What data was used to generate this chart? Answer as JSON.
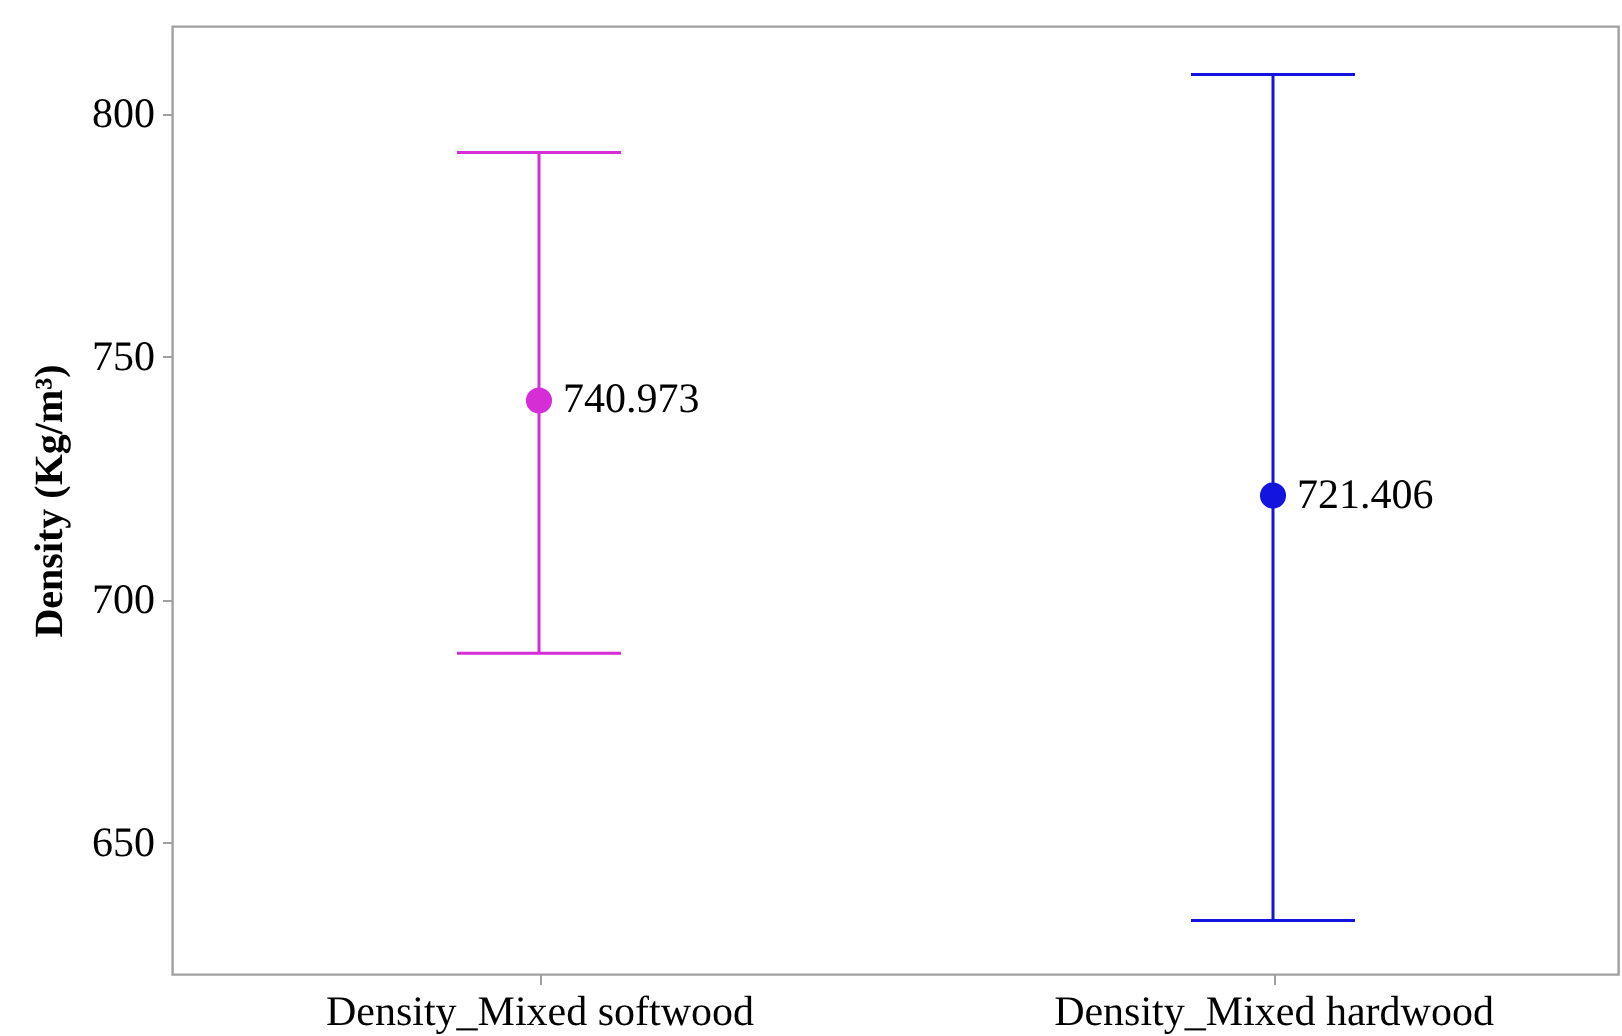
{
  "chart_data": {
    "type": "scatter",
    "categories": [
      "Density_Mixed softwood",
      "Density_Mixed hardwood"
    ],
    "values": [
      740.973,
      721.406
    ],
    "colors": [
      "#d62ed6",
      "#1414e0"
    ],
    "errors": [
      [
        689,
        792
      ],
      [
        634,
        808
      ]
    ],
    "ylabel": "Density (Kg/m³)",
    "ylim": [
      623,
      818
    ],
    "yticks": [
      650,
      700,
      750,
      800
    ],
    "data_labels": true,
    "marker": "circle"
  }
}
